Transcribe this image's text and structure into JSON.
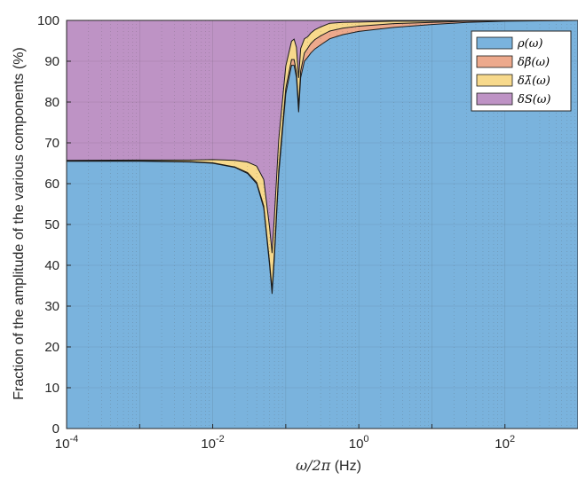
{
  "chart_data": {
    "type": "area",
    "xlabel_main": "ω/2π",
    "xlabel_unit": "(Hz)",
    "ylabel": "Fraction of the amplitude of the various components (%)",
    "x_scale": "log",
    "xlim": [
      0.0001,
      1000
    ],
    "ylim": [
      0,
      100
    ],
    "grid": true,
    "legend_position": "top-right",
    "x_ticks": [
      {
        "value": 0.0001,
        "base": "10",
        "exp": "-4"
      },
      {
        "value": 0.01,
        "base": "10",
        "exp": "-2"
      },
      {
        "value": 1,
        "base": "10",
        "exp": "0"
      },
      {
        "value": 100,
        "base": "10",
        "exp": "2"
      }
    ],
    "y_ticks": [
      0,
      10,
      20,
      30,
      40,
      50,
      60,
      70,
      80,
      90,
      100
    ],
    "x": [
      0.0001,
      0.001,
      0.005,
      0.01,
      0.02,
      0.03,
      0.04,
      0.05,
      0.06,
      0.065,
      0.07,
      0.08,
      0.1,
      0.12,
      0.13,
      0.14,
      0.15,
      0.16,
      0.18,
      0.2,
      0.22,
      0.25,
      0.3,
      0.4,
      0.6,
      1,
      3,
      10,
      30,
      100,
      300,
      1000
    ],
    "series": [
      {
        "name": "ρ(ω)",
        "color": "#7ab3dd",
        "values": [
          65.5,
          65.5,
          65.3,
          65.0,
          64.0,
          62.5,
          60.0,
          54.0,
          40.0,
          33.0,
          42.0,
          62.0,
          82.0,
          89.0,
          89.0,
          86.0,
          77.5,
          86.0,
          90.0,
          91.0,
          92.0,
          93.0,
          94.0,
          95.5,
          96.5,
          97.3,
          98.3,
          99.0,
          99.5,
          99.8,
          99.9,
          100.0
        ]
      },
      {
        "name": "δβ̄(ω)",
        "color": "#eda98c",
        "values": [
          0.1,
          0.1,
          0.1,
          0.1,
          0.1,
          0.2,
          0.3,
          0.5,
          0.8,
          1.0,
          1.2,
          1.2,
          1.3,
          1.4,
          1.4,
          1.4,
          1.4,
          1.6,
          2.0,
          2.2,
          2.3,
          2.3,
          2.2,
          1.9,
          1.6,
          1.3,
          0.9,
          0.5,
          0.3,
          0.1,
          0.05,
          0.0
        ]
      },
      {
        "name": "δλ̄(ω)",
        "color": "#f7d98c",
        "values": [
          0.1,
          0.2,
          0.4,
          0.8,
          1.6,
          2.6,
          4.0,
          6.5,
          8.5,
          9.0,
          9.0,
          7.5,
          5.5,
          4.5,
          5.0,
          6.0,
          7.0,
          5.5,
          3.5,
          2.8,
          2.6,
          2.4,
          2.2,
          1.9,
          1.4,
          1.0,
          0.6,
          0.3,
          0.15,
          0.1,
          0.05,
          0.0
        ]
      },
      {
        "name": "δS(ω)",
        "color": "#be93c5",
        "values": [
          34.3,
          34.2,
          34.2,
          34.1,
          34.3,
          34.7,
          35.7,
          39.0,
          50.7,
          57.0,
          47.8,
          29.3,
          11.2,
          5.1,
          4.6,
          6.6,
          14.1,
          6.9,
          4.5,
          4.0,
          3.1,
          2.3,
          1.6,
          0.7,
          0.5,
          0.4,
          0.2,
          0.2,
          0.05,
          0.0,
          0.0,
          0.0
        ]
      }
    ]
  }
}
